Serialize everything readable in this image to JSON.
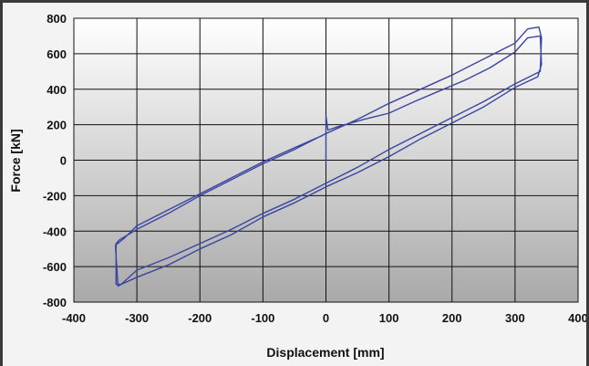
{
  "chart_data": {
    "type": "line",
    "title": "",
    "xlabel": "Displacement [mm]",
    "ylabel": "Force [kN]",
    "xlim": [
      -400,
      400
    ],
    "ylim": [
      -800,
      800
    ],
    "xticks": [
      "-400",
      "-300",
      "-200",
      "-100",
      "0",
      "100",
      "200",
      "300",
      "400"
    ],
    "yticks": [
      "800",
      "600",
      "400",
      "200",
      "0",
      "-200",
      "-400",
      "-600",
      "-800"
    ],
    "grid": true,
    "legend": "none",
    "colors": {
      "series": "#3a45a0",
      "plot_bg_top": "#ffffff",
      "plot_bg_bottom": "#a9a9a9",
      "grid": "#111111"
    },
    "series": [
      {
        "values": [
          [
            0,
            -20
          ],
          [
            0,
            250
          ],
          [
            3,
            170
          ],
          [
            20,
            190
          ],
          [
            60,
            230
          ],
          [
            100,
            265
          ],
          [
            140,
            330
          ],
          [
            180,
            390
          ],
          [
            220,
            450
          ],
          [
            260,
            520
          ],
          [
            300,
            610
          ],
          [
            320,
            690
          ],
          [
            340,
            700
          ],
          [
            342,
            540
          ],
          [
            336,
            470
          ],
          [
            300,
            410
          ],
          [
            250,
            300
          ],
          [
            200,
            210
          ],
          [
            150,
            120
          ],
          [
            100,
            20
          ],
          [
            50,
            -70
          ],
          [
            0,
            -150
          ],
          [
            -50,
            -240
          ],
          [
            -100,
            -320
          ],
          [
            -150,
            -420
          ],
          [
            -200,
            -500
          ],
          [
            -250,
            -590
          ],
          [
            -300,
            -660
          ],
          [
            -325,
            -700
          ],
          [
            -333,
            -700
          ],
          [
            -333,
            -470
          ],
          [
            -328,
            -450
          ],
          [
            -300,
            -390
          ],
          [
            -250,
            -300
          ],
          [
            -200,
            -200
          ],
          [
            -150,
            -110
          ],
          [
            -100,
            -20
          ],
          [
            -50,
            60
          ],
          [
            0,
            150
          ],
          [
            50,
            230
          ],
          [
            100,
            320
          ],
          [
            150,
            400
          ],
          [
            200,
            480
          ],
          [
            250,
            570
          ],
          [
            300,
            660
          ],
          [
            320,
            740
          ],
          [
            338,
            750
          ],
          [
            342,
            690
          ],
          [
            340,
            500
          ],
          [
            300,
            430
          ],
          [
            250,
            330
          ],
          [
            200,
            240
          ],
          [
            150,
            150
          ],
          [
            100,
            60
          ],
          [
            50,
            -40
          ],
          [
            0,
            -130
          ],
          [
            -50,
            -220
          ],
          [
            -100,
            -300
          ],
          [
            -150,
            -390
          ],
          [
            -200,
            -470
          ],
          [
            -250,
            -550
          ],
          [
            -300,
            -620
          ],
          [
            -325,
            -700
          ],
          [
            -330,
            -710
          ],
          [
            -334,
            -480
          ],
          [
            -320,
            -440
          ],
          [
            -300,
            -370
          ],
          [
            -250,
            -280
          ],
          [
            -200,
            -190
          ],
          [
            -150,
            -100
          ],
          [
            -100,
            -10
          ],
          [
            -50,
            70
          ],
          [
            -5,
            140
          ]
        ]
      }
    ]
  }
}
